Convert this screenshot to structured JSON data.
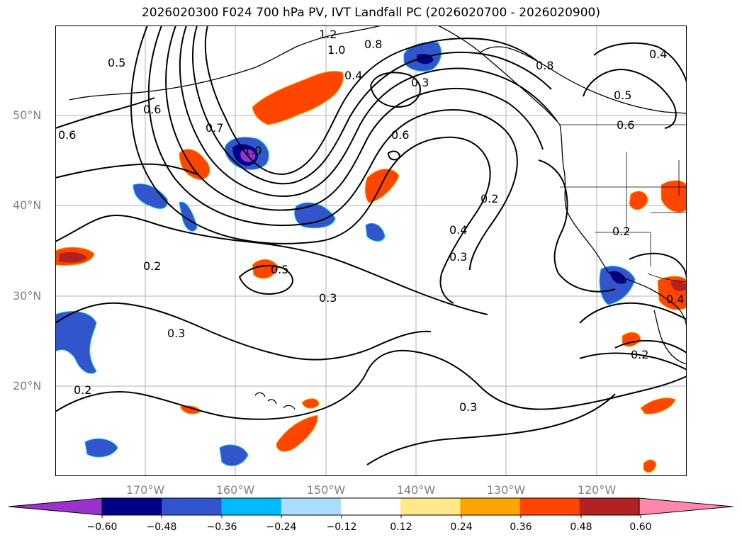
{
  "title": "2026020300 F024 700 hPa PV, IVT Landfall PC (2026020700 - 2026020900)",
  "map": {
    "lat_labels": [
      "50°N",
      "40°N",
      "30°N",
      "20°N"
    ],
    "lon_labels": [
      "170°W",
      "160°W",
      "150°W",
      "140°W",
      "130°W",
      "120°W"
    ],
    "contour_labels": [
      "1.2",
      "1.0",
      "0.8",
      "0.5",
      "0.6",
      "0.6",
      "0.7",
      "0.4",
      "0.3",
      "0.6",
      "1.0",
      "0.8",
      "0.4",
      "0.5",
      "0.6",
      "0.2",
      "0.4",
      "0.3",
      "0.2",
      "0.5",
      "0.3",
      "0.3",
      "0.2",
      "0.2",
      "0.3",
      "0.2",
      "0.4"
    ],
    "land_color": "#000000",
    "contour_color": "#000000",
    "grid_color": "#b0b0b0"
  },
  "colorbar": {
    "colors": [
      "#9933cc",
      "#00008b",
      "#3355cc",
      "#00bbff",
      "#aaddff",
      "#ffffff",
      "#ffe98a",
      "#ffa500",
      "#ff4500",
      "#b22222",
      "#ff88aa"
    ],
    "tick_labels": [
      "−0.60",
      "−0.48",
      "−0.36",
      "−0.24",
      "−0.12",
      "0.12",
      "0.24",
      "0.36",
      "0.48",
      "0.60"
    ]
  }
}
